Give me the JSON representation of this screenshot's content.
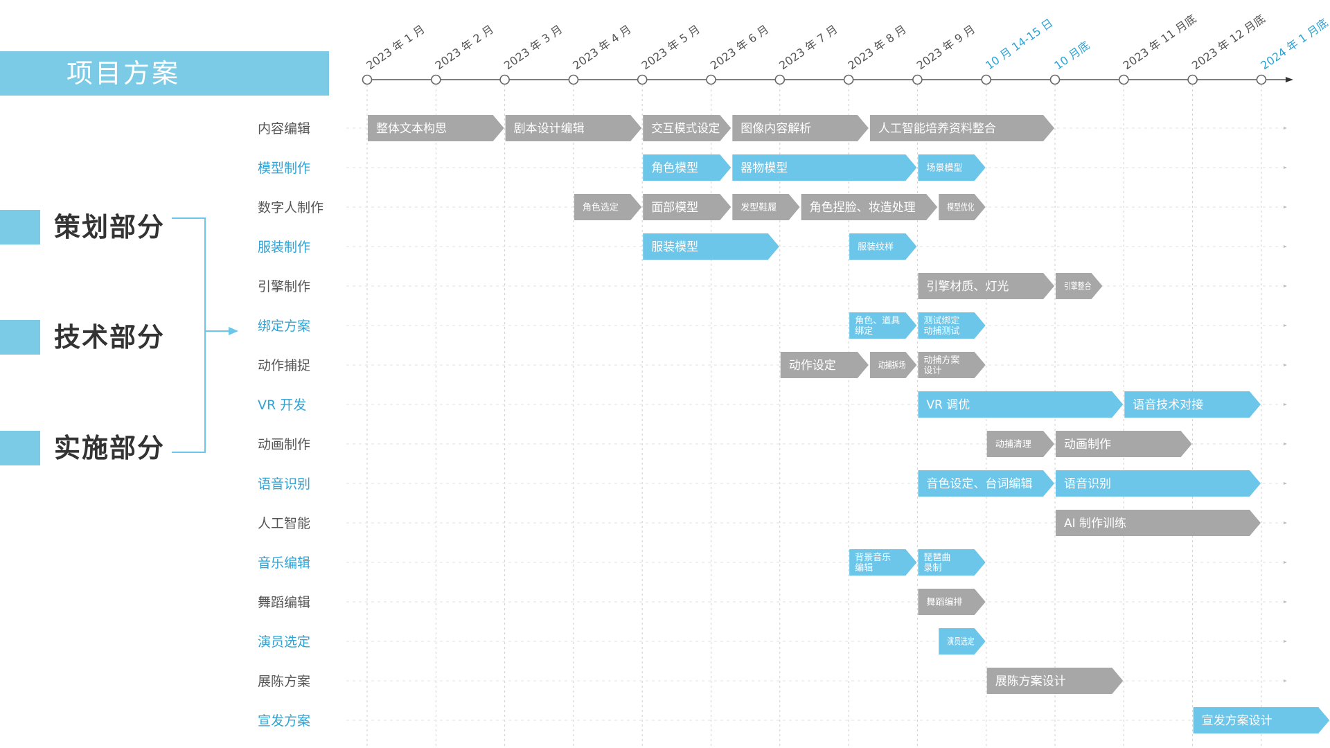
{
  "page": {
    "title": "项目方案"
  },
  "legend": {
    "items": [
      {
        "label": "策划部分"
      },
      {
        "label": "技术部分"
      },
      {
        "label": "实施部分"
      }
    ]
  },
  "colors": {
    "accent": "#6cc6ea",
    "gray": "#a7a7a7",
    "title_bar": "#7ccbe6",
    "axis": "#555555",
    "text_dark": "#555555",
    "text_blue": "#2ea3d5"
  },
  "chart_data": {
    "type": "table",
    "title": "",
    "timeline": [
      {
        "label": "2023 年 1 月",
        "highlight": false
      },
      {
        "label": "2023 年 2 月",
        "highlight": false
      },
      {
        "label": "2023 年 3 月",
        "highlight": false
      },
      {
        "label": "2023 年 4 月",
        "highlight": false
      },
      {
        "label": "2023 年 5 月",
        "highlight": false
      },
      {
        "label": "2023 年 6 月",
        "highlight": false
      },
      {
        "label": "2023 年 7 月",
        "highlight": false
      },
      {
        "label": "2023 年 8 月",
        "highlight": false
      },
      {
        "label": "2023 年 9 月",
        "highlight": false
      },
      {
        "label": "10 月 14-15 日",
        "highlight": true
      },
      {
        "label": "10 月底",
        "highlight": true
      },
      {
        "label": "2023 年 11 月底",
        "highlight": false
      },
      {
        "label": "2023 年 12 月底",
        "highlight": false
      },
      {
        "label": "2024 年 1 月底",
        "highlight": true
      }
    ],
    "rows": [
      {
        "label": "内容编辑",
        "color": "gray",
        "tasks": [
          {
            "label": "整体文本构思",
            "start": 0,
            "end": 2
          },
          {
            "label": "剧本设计编辑",
            "start": 2,
            "end": 4
          },
          {
            "label": "交互模式设定",
            "start": 4,
            "end": 5.3
          },
          {
            "label": "图像内容解析",
            "start": 5.3,
            "end": 7.3
          },
          {
            "label": "人工智能培养资料整合",
            "start": 7.3,
            "end": 10
          }
        ]
      },
      {
        "label": "模型制作",
        "color": "blue",
        "tasks": [
          {
            "label": "角色模型",
            "start": 4,
            "end": 5.3
          },
          {
            "label": "器物模型",
            "start": 5.3,
            "end": 8
          },
          {
            "label": "场景模型",
            "start": 8,
            "end": 9
          }
        ]
      },
      {
        "label": "数字人制作",
        "color": "gray",
        "tasks": [
          {
            "label": "角色选定",
            "start": 3,
            "end": 4
          },
          {
            "label": "面部模型",
            "start": 4,
            "end": 5.3
          },
          {
            "label": "发型鞋履",
            "start": 5.3,
            "end": 6.3
          },
          {
            "label": "角色捏脸、妆造处理",
            "start": 6.3,
            "end": 8.3
          },
          {
            "label": "模型优化",
            "start": 8.3,
            "end": 9
          }
        ]
      },
      {
        "label": "服装制作",
        "color": "blue",
        "tasks": [
          {
            "label": "服装模型",
            "start": 4,
            "end": 6
          },
          {
            "label": "服装纹样",
            "start": 7,
            "end": 8
          }
        ]
      },
      {
        "label": "引擎制作",
        "color": "gray",
        "tasks": [
          {
            "label": "引擎材质、灯光",
            "start": 8,
            "end": 10
          },
          {
            "label": "引擎整合",
            "start": 10,
            "end": 10.7
          }
        ]
      },
      {
        "label": "绑定方案",
        "color": "blue",
        "tasks": [
          {
            "label": "角色、道具|绑定",
            "start": 7,
            "end": 8
          },
          {
            "label": "测试绑定|动捕测试",
            "start": 8,
            "end": 9
          }
        ]
      },
      {
        "label": "动作捕捉",
        "color": "gray",
        "tasks": [
          {
            "label": "动作设定",
            "start": 6,
            "end": 7.3
          },
          {
            "label": "动捕拆场",
            "start": 7.3,
            "end": 8
          },
          {
            "label": "动捕方案|设计",
            "start": 8,
            "end": 9
          }
        ]
      },
      {
        "label": "VR 开发",
        "color": "blue",
        "tasks": [
          {
            "label": "VR 调优",
            "start": 8,
            "end": 11
          },
          {
            "label": "语音技术对接",
            "start": 11,
            "end": 13
          }
        ]
      },
      {
        "label": "动画制作",
        "color": "gray",
        "tasks": [
          {
            "label": "动捕清理",
            "start": 9,
            "end": 10
          },
          {
            "label": "动画制作",
            "start": 10,
            "end": 12
          }
        ]
      },
      {
        "label": "语音识别",
        "color": "blue",
        "tasks": [
          {
            "label": "音色设定、台词编辑",
            "start": 8,
            "end": 10
          },
          {
            "label": "语音识别",
            "start": 10,
            "end": 13
          }
        ]
      },
      {
        "label": "人工智能",
        "color": "gray",
        "tasks": [
          {
            "label": "AI 制作训练",
            "start": 10,
            "end": 13
          }
        ]
      },
      {
        "label": "音乐编辑",
        "color": "blue",
        "tasks": [
          {
            "label": "背景音乐|编辑",
            "start": 7,
            "end": 8
          },
          {
            "label": "琵琶曲|录制",
            "start": 8,
            "end": 9
          }
        ]
      },
      {
        "label": "舞蹈编辑",
        "color": "gray",
        "tasks": [
          {
            "label": "舞蹈编排",
            "start": 8,
            "end": 9
          }
        ]
      },
      {
        "label": "演员选定",
        "color": "blue",
        "tasks": [
          {
            "label": "演员选定",
            "start": 8.3,
            "end": 9
          }
        ]
      },
      {
        "label": "展陈方案",
        "color": "gray",
        "tasks": [
          {
            "label": "展陈方案设计",
            "start": 9,
            "end": 11
          }
        ]
      },
      {
        "label": "宣发方案",
        "color": "blue",
        "tasks": [
          {
            "label": "宣发方案设计",
            "start": 12,
            "end": 14
          }
        ]
      }
    ]
  }
}
